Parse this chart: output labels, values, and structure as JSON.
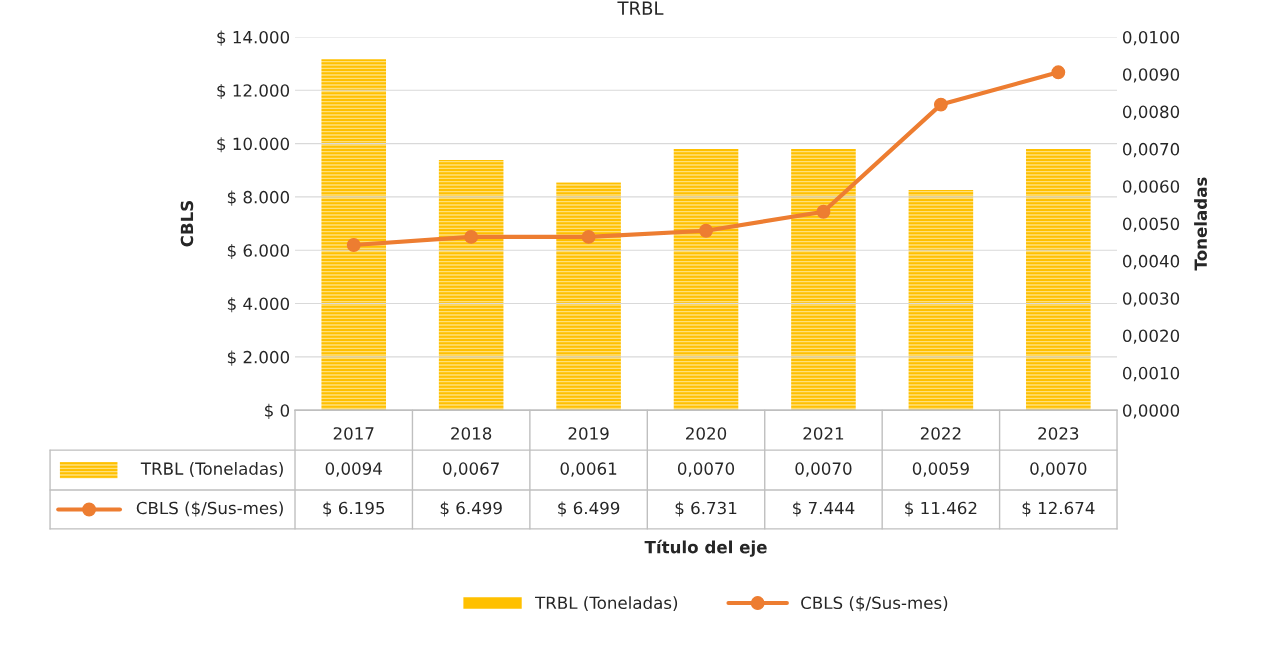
{
  "chart_data": {
    "type": "bar",
    "title": "TRBL",
    "annotations": [
      "Título del eje"
    ],
    "ylabel": "CBLS",
    "y2label": "Toneladas",
    "categories": [
      "2017",
      "2018",
      "2019",
      "2020",
      "2021",
      "2022",
      "2023"
    ],
    "series": [
      {
        "name": "TRBL (Toneladas)",
        "axis": "y2",
        "color": "#ffc000",
        "values": [
          0.0094,
          0.0067,
          0.0061,
          0.007,
          0.007,
          0.0059,
          0.007
        ],
        "value_labels": [
          "0,0094",
          "0,0067",
          "0,0061",
          "0,0070",
          "0,0070",
          "0,0059",
          "0,0070"
        ]
      },
      {
        "name": "CBLS ($/Sus-mes)",
        "type": "line",
        "color": "#ed7d31",
        "marker": "circle",
        "values": [
          6195,
          6499,
          6499,
          6731,
          7444,
          11462,
          12674
        ],
        "value_labels": [
          "$ 6.195",
          "$ 6.499",
          "$ 6.499",
          "$ 6.731",
          "$ 7.444",
          "$ 11.462",
          "$ 12.674"
        ]
      }
    ],
    "ylim": [
      0,
      14000
    ],
    "yticks": [
      {
        "value": 0,
        "label": "$ 0"
      },
      {
        "value": 2000,
        "label": "$ 2.000"
      },
      {
        "value": 4000,
        "label": "$ 4.000"
      },
      {
        "value": 6000,
        "label": "$ 6.000"
      },
      {
        "value": 8000,
        "label": "$ 8.000"
      },
      {
        "value": 10000,
        "label": "$ 10.000"
      },
      {
        "value": 12000,
        "label": "$ 12.000"
      },
      {
        "value": 14000,
        "label": "$ 14.000"
      }
    ],
    "y2lim": [
      0,
      0.01
    ],
    "y2ticks": [
      {
        "value": 0,
        "label": "0,0000"
      },
      {
        "value": 0.001,
        "label": "0,0010"
      },
      {
        "value": 0.002,
        "label": "0,0020"
      },
      {
        "value": 0.003,
        "label": "0,0030"
      },
      {
        "value": 0.004,
        "label": "0,0040"
      },
      {
        "value": 0.005,
        "label": "0,0050"
      },
      {
        "value": 0.006,
        "label": "0,0060"
      },
      {
        "value": 0.007,
        "label": "0,0070"
      },
      {
        "value": 0.008,
        "label": "0,0080"
      },
      {
        "value": 0.009,
        "label": "0,0090"
      },
      {
        "value": 0.01,
        "label": "0,0100"
      }
    ],
    "grid": "y",
    "legend": "bottom"
  }
}
